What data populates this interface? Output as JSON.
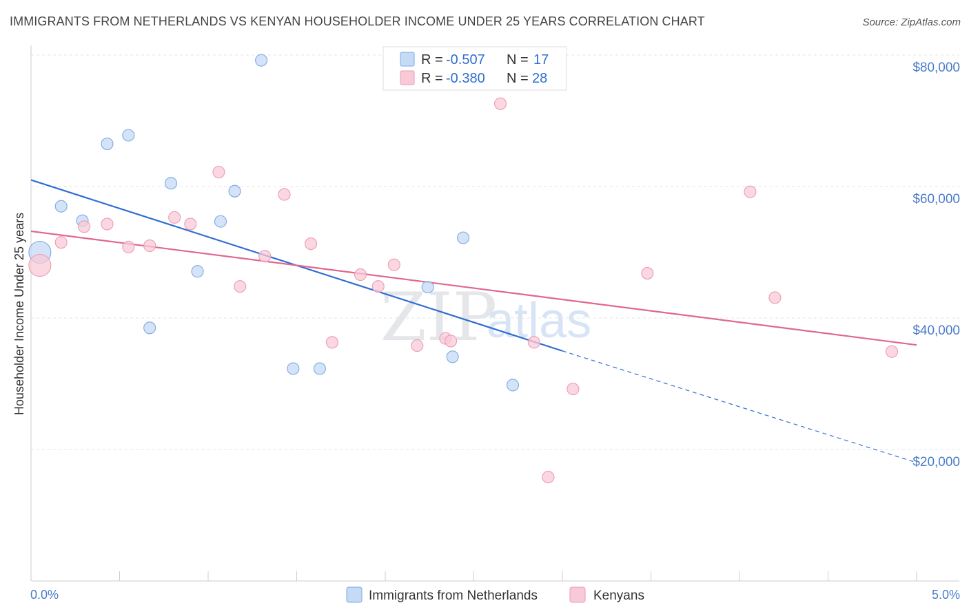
{
  "header": {
    "title": "IMMIGRANTS FROM NETHERLANDS VS KENYAN HOUSEHOLDER INCOME UNDER 25 YEARS CORRELATION CHART",
    "source": "Source: ZipAtlas.com"
  },
  "watermark": {
    "zip": "ZIP",
    "atlas": "atlas"
  },
  "legend": {
    "series": [
      {
        "r_label": "R = ",
        "r_value": "-0.507",
        "n_label": "N = ",
        "n_value": "17"
      },
      {
        "r_label": "R = ",
        "r_value": "-0.380",
        "n_label": "N = ",
        "n_value": "28"
      }
    ]
  },
  "chart_data": {
    "type": "scatter",
    "title": "IMMIGRANTS FROM NETHERLANDS VS KENYAN HOUSEHOLDER INCOME UNDER 25 YEARS CORRELATION CHART",
    "xlabel": "",
    "ylabel": "Householder Income Under 25 years",
    "xlim": [
      0.0,
      5.0
    ],
    "ylim": [
      0,
      82000
    ],
    "x_tick_labels": [
      "0.0%",
      "5.0%"
    ],
    "y_ticks": [
      20000,
      40000,
      60000,
      80000
    ],
    "y_tick_labels": [
      "$20,000",
      "$40,000",
      "$60,000",
      "$80,000"
    ],
    "grid": true,
    "legend_position": "bottom-center",
    "series": [
      {
        "name": "Immigrants from Netherlands",
        "color": "#7aaae6",
        "fill": "#c5daf5",
        "line_color": "#2f6ed1",
        "R": -0.507,
        "N": 17,
        "trend": {
          "x_start": 0.0,
          "y_start": 61000,
          "x_end": 3.0,
          "y_end": 35000,
          "dash_x_end": 5.0,
          "dash_y_end": 18000
        },
        "points": [
          {
            "x": 0.05,
            "y": 50000,
            "size": "large"
          },
          {
            "x": 0.17,
            "y": 57000
          },
          {
            "x": 0.29,
            "y": 54800
          },
          {
            "x": 0.43,
            "y": 66500
          },
          {
            "x": 0.55,
            "y": 67800
          },
          {
            "x": 0.67,
            "y": 38500
          },
          {
            "x": 0.79,
            "y": 60500
          },
          {
            "x": 0.94,
            "y": 47100
          },
          {
            "x": 1.07,
            "y": 54700
          },
          {
            "x": 1.15,
            "y": 59300
          },
          {
            "x": 1.3,
            "y": 79200
          },
          {
            "x": 1.48,
            "y": 32300
          },
          {
            "x": 1.63,
            "y": 32300
          },
          {
            "x": 2.24,
            "y": 44700
          },
          {
            "x": 2.38,
            "y": 34100
          },
          {
            "x": 2.44,
            "y": 52200
          },
          {
            "x": 2.72,
            "y": 29800
          }
        ]
      },
      {
        "name": "Kenyans",
        "color": "#ee9ab4",
        "fill": "#f8c9d7",
        "line_color": "#e06690",
        "R": -0.38,
        "N": 28,
        "trend": {
          "x_start": 0.0,
          "y_start": 53200,
          "x_end": 5.0,
          "y_end": 35900
        },
        "points": [
          {
            "x": 0.05,
            "y": 48000,
            "size": "large"
          },
          {
            "x": 0.17,
            "y": 51500
          },
          {
            "x": 0.3,
            "y": 53900
          },
          {
            "x": 0.43,
            "y": 54300
          },
          {
            "x": 0.55,
            "y": 50800
          },
          {
            "x": 0.67,
            "y": 51000
          },
          {
            "x": 0.81,
            "y": 55300
          },
          {
            "x": 0.9,
            "y": 54300
          },
          {
            "x": 1.06,
            "y": 62200
          },
          {
            "x": 1.18,
            "y": 44800
          },
          {
            "x": 1.32,
            "y": 49400
          },
          {
            "x": 1.43,
            "y": 58800
          },
          {
            "x": 1.58,
            "y": 51300
          },
          {
            "x": 1.7,
            "y": 36300
          },
          {
            "x": 1.86,
            "y": 46600
          },
          {
            "x": 1.96,
            "y": 44800
          },
          {
            "x": 2.05,
            "y": 48100
          },
          {
            "x": 2.18,
            "y": 35800
          },
          {
            "x": 2.34,
            "y": 36900
          },
          {
            "x": 2.37,
            "y": 36500
          },
          {
            "x": 2.65,
            "y": 72600
          },
          {
            "x": 2.84,
            "y": 36300
          },
          {
            "x": 2.92,
            "y": 15800
          },
          {
            "x": 3.06,
            "y": 29200
          },
          {
            "x": 3.48,
            "y": 46800
          },
          {
            "x": 4.06,
            "y": 59200
          },
          {
            "x": 4.2,
            "y": 43100
          },
          {
            "x": 4.86,
            "y": 34900
          }
        ]
      }
    ]
  }
}
